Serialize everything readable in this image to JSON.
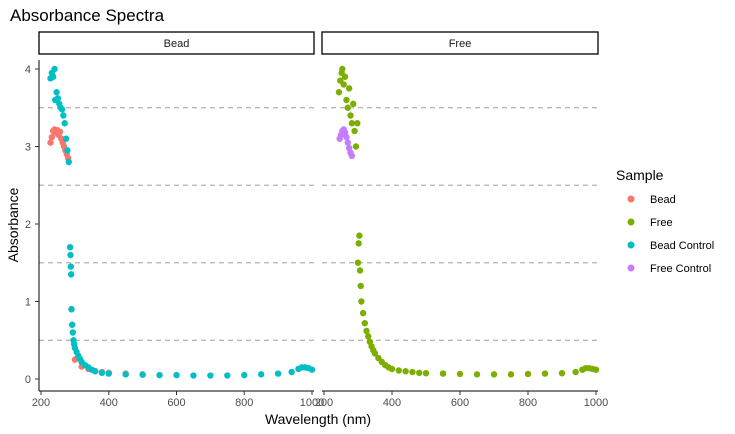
{
  "chart_data": {
    "type": "scatter",
    "title": "Absorbance Spectra",
    "xlabel": "Wavelength (nm)",
    "ylabel": "Absorbance",
    "xlim": [
      200,
      1000
    ],
    "ylim": [
      0,
      4
    ],
    "x_ticks": [
      200,
      400,
      600,
      800,
      1000
    ],
    "y_ticks": [
      0,
      1,
      2,
      3,
      4
    ],
    "reference_lines": [
      0.5,
      1.5,
      2.5,
      3.5
    ],
    "grid": false,
    "legend_position": "right",
    "legend_title": "Sample",
    "facets": [
      "Bead",
      "Free"
    ],
    "series": [
      {
        "name": "Bead",
        "color": "#F8766D",
        "facet": "Bead",
        "points": [
          [
            228,
            3.05
          ],
          [
            232,
            3.12
          ],
          [
            236,
            3.2
          ],
          [
            240,
            3.22
          ],
          [
            244,
            3.18
          ],
          [
            248,
            3.21
          ],
          [
            252,
            3.15
          ],
          [
            256,
            3.19
          ],
          [
            260,
            3.1
          ],
          [
            264,
            3.05
          ],
          [
            268,
            3.0
          ],
          [
            272,
            2.95
          ],
          [
            276,
            2.9
          ],
          [
            280,
            2.85
          ],
          [
            290,
            0.9
          ],
          [
            300,
            0.25
          ],
          [
            320,
            0.16
          ],
          [
            340,
            0.13
          ],
          [
            360,
            0.1
          ],
          [
            380,
            0.09
          ],
          [
            400,
            0.08
          ],
          [
            450,
            0.07
          ],
          [
            500,
            0.06
          ]
        ]
      },
      {
        "name": "Free",
        "color": "#7CAE00",
        "facet": "Free",
        "points": [
          [
            244,
            3.7
          ],
          [
            248,
            3.85
          ],
          [
            252,
            3.95
          ],
          [
            254,
            4.0
          ],
          [
            258,
            3.8
          ],
          [
            262,
            3.9
          ],
          [
            266,
            3.6
          ],
          [
            270,
            3.5
          ],
          [
            274,
            3.75
          ],
          [
            278,
            3.4
          ],
          [
            282,
            3.3
          ],
          [
            286,
            3.55
          ],
          [
            290,
            3.2
          ],
          [
            294,
            3.0
          ],
          [
            298,
            3.3
          ],
          [
            300,
            1.5
          ],
          [
            302,
            1.75
          ],
          [
            304,
            1.85
          ],
          [
            306,
            1.4
          ],
          [
            308,
            1.2
          ],
          [
            310,
            1.0
          ],
          [
            315,
            0.85
          ],
          [
            320,
            0.72
          ],
          [
            325,
            0.62
          ],
          [
            330,
            0.55
          ],
          [
            335,
            0.48
          ],
          [
            340,
            0.42
          ],
          [
            345,
            0.37
          ],
          [
            350,
            0.33
          ],
          [
            360,
            0.27
          ],
          [
            370,
            0.22
          ],
          [
            380,
            0.18
          ],
          [
            390,
            0.15
          ],
          [
            400,
            0.13
          ],
          [
            420,
            0.11
          ],
          [
            440,
            0.1
          ],
          [
            460,
            0.09
          ],
          [
            480,
            0.08
          ],
          [
            500,
            0.075
          ],
          [
            550,
            0.07
          ],
          [
            600,
            0.065
          ],
          [
            650,
            0.06
          ],
          [
            700,
            0.06
          ],
          [
            750,
            0.06
          ],
          [
            800,
            0.065
          ],
          [
            850,
            0.07
          ],
          [
            900,
            0.075
          ],
          [
            940,
            0.09
          ],
          [
            960,
            0.12
          ],
          [
            970,
            0.14
          ],
          [
            980,
            0.14
          ],
          [
            990,
            0.13
          ],
          [
            1000,
            0.12
          ]
        ]
      },
      {
        "name": "Bead Control",
        "color": "#00BFC4",
        "facet": "Bead",
        "points": [
          [
            228,
            3.88
          ],
          [
            232,
            3.95
          ],
          [
            236,
            3.9
          ],
          [
            240,
            4.0
          ],
          [
            242,
            3.6
          ],
          [
            246,
            3.7
          ],
          [
            250,
            3.62
          ],
          [
            254,
            3.55
          ],
          [
            258,
            3.5
          ],
          [
            262,
            3.48
          ],
          [
            266,
            3.4
          ],
          [
            270,
            3.3
          ],
          [
            274,
            3.1
          ],
          [
            278,
            2.95
          ],
          [
            282,
            2.8
          ],
          [
            286,
            1.7
          ],
          [
            287,
            1.6
          ],
          [
            288,
            1.45
          ],
          [
            289,
            1.35
          ],
          [
            290,
            0.9
          ],
          [
            292,
            0.7
          ],
          [
            294,
            0.6
          ],
          [
            296,
            0.5
          ],
          [
            298,
            0.45
          ],
          [
            300,
            0.4
          ],
          [
            305,
            0.35
          ],
          [
            310,
            0.3
          ],
          [
            315,
            0.26
          ],
          [
            320,
            0.22
          ],
          [
            330,
            0.18
          ],
          [
            340,
            0.15
          ],
          [
            350,
            0.12
          ],
          [
            360,
            0.1
          ],
          [
            380,
            0.08
          ],
          [
            400,
            0.07
          ],
          [
            450,
            0.06
          ],
          [
            500,
            0.055
          ],
          [
            550,
            0.05
          ],
          [
            600,
            0.05
          ],
          [
            650,
            0.045
          ],
          [
            700,
            0.045
          ],
          [
            750,
            0.045
          ],
          [
            800,
            0.05
          ],
          [
            850,
            0.06
          ],
          [
            900,
            0.07
          ],
          [
            940,
            0.09
          ],
          [
            960,
            0.13
          ],
          [
            970,
            0.15
          ],
          [
            980,
            0.15
          ],
          [
            990,
            0.14
          ],
          [
            1000,
            0.12
          ]
        ]
      },
      {
        "name": "Free Control",
        "color": "#C77CFF",
        "facet": "Free",
        "points": [
          [
            246,
            3.1
          ],
          [
            250,
            3.15
          ],
          [
            254,
            3.2
          ],
          [
            258,
            3.22
          ],
          [
            262,
            3.18
          ],
          [
            266,
            3.12
          ],
          [
            270,
            3.05
          ],
          [
            274,
            2.98
          ],
          [
            278,
            2.92
          ],
          [
            282,
            2.88
          ]
        ]
      }
    ]
  }
}
